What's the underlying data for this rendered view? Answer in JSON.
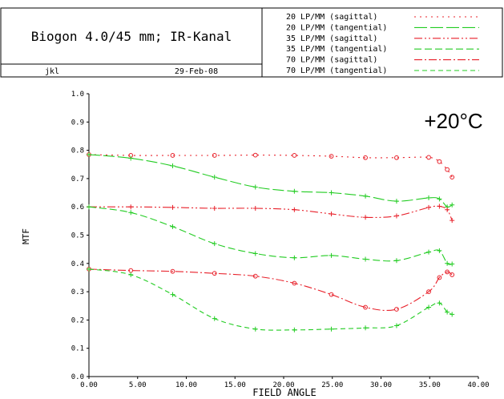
{
  "header": {
    "lens_title": "Biogon 4.0/45 mm; IR-Kanal",
    "author": "jkl",
    "date": "29-Feb-08",
    "legend": [
      {
        "label": "20 LP/MM (sagittal)",
        "color": "#e8202a",
        "dash": "sagittal-dot"
      },
      {
        "label": "20 LP/MM (tangential)",
        "color": "#22cc22",
        "dash": "long-dash"
      },
      {
        "label": "35 LP/MM (sagittal)",
        "color": "#e8202a",
        "dash": "dash-dot-dot"
      },
      {
        "label": "35 LP/MM (tangential)",
        "color": "#22cc22",
        "dash": "medium-dash"
      },
      {
        "label": "70 LP/MM (sagittal)",
        "color": "#e8202a",
        "dash": "dash-dot"
      },
      {
        "label": "70 LP/MM (tangential)",
        "color": "#22cc22",
        "dash": "short-dash"
      }
    ]
  },
  "chart_data": {
    "type": "line",
    "title": "",
    "annotation": "+20°C",
    "xlabel": "FIELD ANGLE",
    "ylabel": "MTF",
    "xlim": [
      0,
      40
    ],
    "ylim": [
      0,
      1
    ],
    "xticks": [
      "0.00",
      "5.00",
      "10.00",
      "15.00",
      "20.00",
      "25.00",
      "30.00",
      "35.00",
      "40.00"
    ],
    "yticks": [
      "0.0",
      "0.1",
      "0.2",
      "0.3",
      "0.4",
      "0.5",
      "0.6",
      "0.7",
      "0.8",
      "0.9",
      "1.0"
    ],
    "grid": false,
    "series": [
      {
        "name": "20 LP/MM (sagittal)",
        "color": "#e8202a",
        "dash": "2,5",
        "marker": "circle",
        "x": [
          0,
          4.3,
          8.6,
          12.9,
          17.1,
          21.1,
          24.9,
          28.4,
          31.6,
          34.9,
          36.0,
          36.8,
          37.3
        ],
        "y": [
          0.785,
          0.782,
          0.782,
          0.782,
          0.783,
          0.782,
          0.779,
          0.774,
          0.774,
          0.775,
          0.76,
          0.732,
          0.705
        ]
      },
      {
        "name": "20 LP/MM (tangential)",
        "color": "#22cc22",
        "dash": "14,4",
        "marker": "plus",
        "x": [
          0,
          4.3,
          8.6,
          12.9,
          17.1,
          21.1,
          24.9,
          28.4,
          31.6,
          34.9,
          36.0,
          36.8,
          37.3
        ],
        "y": [
          0.785,
          0.772,
          0.745,
          0.705,
          0.67,
          0.655,
          0.65,
          0.638,
          0.62,
          0.632,
          0.628,
          0.6,
          0.607
        ]
      },
      {
        "name": "35 LP/MM (sagittal)",
        "color": "#e8202a",
        "dash": "10,3,2,3,2,3",
        "marker": "plus",
        "x": [
          0,
          4.3,
          8.6,
          12.9,
          17.1,
          21.1,
          24.9,
          28.4,
          31.6,
          34.9,
          36.0,
          36.8,
          37.3
        ],
        "y": [
          0.6,
          0.6,
          0.598,
          0.595,
          0.595,
          0.59,
          0.575,
          0.563,
          0.568,
          0.598,
          0.602,
          0.59,
          0.552
        ]
      },
      {
        "name": "35 LP/MM (tangential)",
        "color": "#22cc22",
        "dash": "9,4",
        "marker": "plus",
        "x": [
          0,
          4.3,
          8.6,
          12.9,
          17.1,
          21.1,
          24.9,
          28.4,
          31.6,
          34.9,
          36.0,
          36.8,
          37.3
        ],
        "y": [
          0.6,
          0.58,
          0.53,
          0.47,
          0.435,
          0.42,
          0.428,
          0.415,
          0.41,
          0.44,
          0.445,
          0.4,
          0.398
        ]
      },
      {
        "name": "70 LP/MM (sagittal)",
        "color": "#e8202a",
        "dash": "10,3,2,3",
        "marker": "circle",
        "x": [
          0,
          4.3,
          8.6,
          12.9,
          17.1,
          21.1,
          24.9,
          28.4,
          31.6,
          34.9,
          36.0,
          36.8,
          37.3
        ],
        "y": [
          0.38,
          0.375,
          0.372,
          0.365,
          0.355,
          0.33,
          0.29,
          0.245,
          0.238,
          0.3,
          0.35,
          0.37,
          0.36
        ]
      },
      {
        "name": "70 LP/MM (tangential)",
        "color": "#22cc22",
        "dash": "6,4",
        "marker": "plus",
        "x": [
          0,
          4.3,
          8.6,
          12.9,
          17.1,
          21.1,
          24.9,
          28.4,
          31.6,
          34.9,
          36.0,
          36.8,
          37.3
        ],
        "y": [
          0.38,
          0.36,
          0.29,
          0.205,
          0.168,
          0.165,
          0.168,
          0.172,
          0.18,
          0.245,
          0.26,
          0.228,
          0.22
        ]
      }
    ]
  }
}
